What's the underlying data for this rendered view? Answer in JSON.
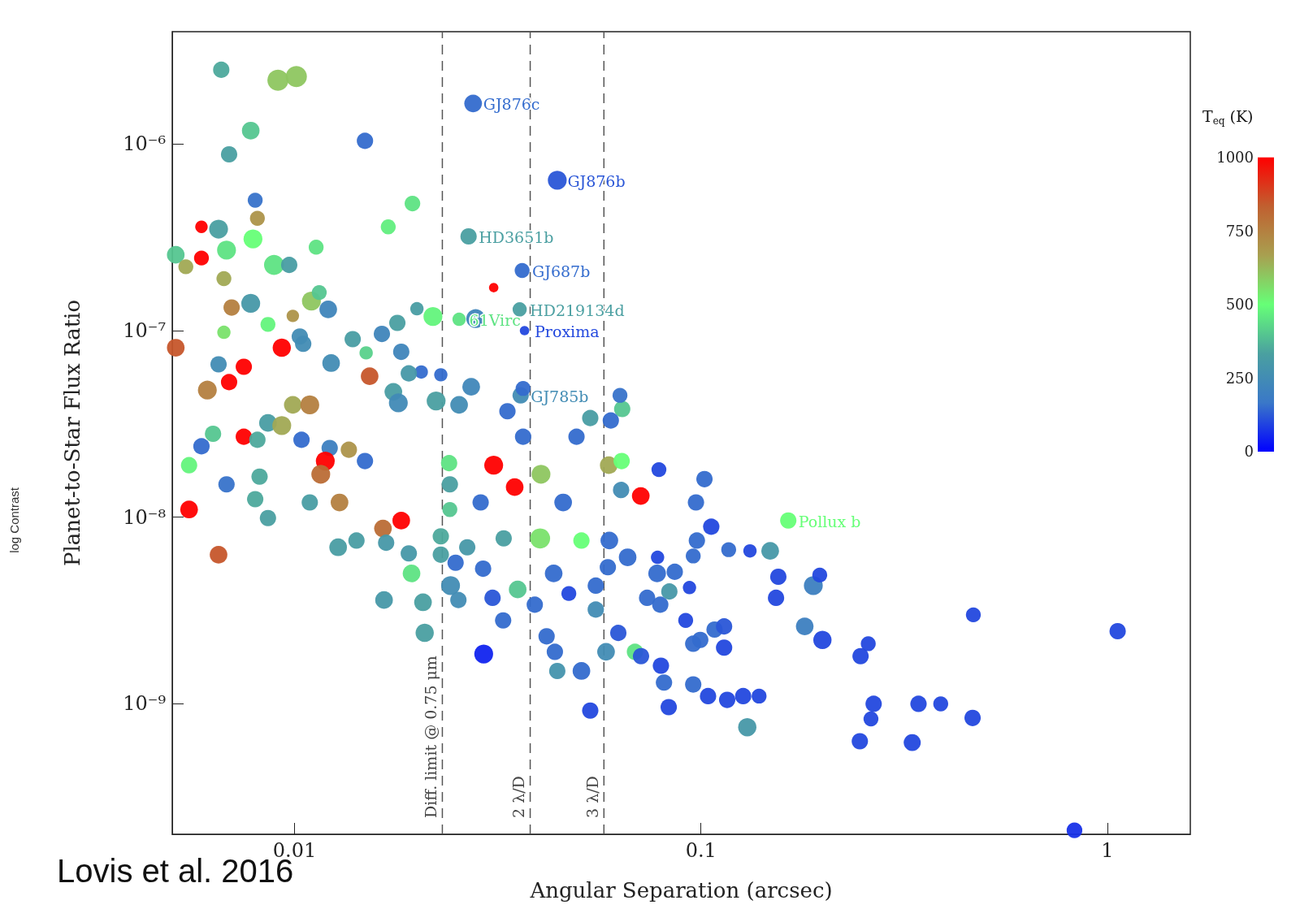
{
  "chart_data": {
    "type": "bubble",
    "xlabel": "Angular Separation (arcsec)",
    "ylabel": "Planet-to-Star Flux Ratio",
    "clabel": "T$_{eq}$ (K)",
    "log": "xy",
    "marker": "circle",
    "xlim": [
      0.005,
      1.6
    ],
    "ylim": [
      2e-10,
      4e-06
    ],
    "xticks": [
      0.01,
      0.1,
      1
    ],
    "yticks": [
      {
        "value": 1e-09,
        "label": "10⁻⁹"
      },
      {
        "value": 1e-08,
        "label": "10⁻⁸"
      },
      {
        "value": 1e-07,
        "label": "10⁻⁷"
      },
      {
        "value": 1e-06,
        "label": "10⁻⁶"
      }
    ],
    "clim": [
      0,
      1000
    ],
    "cticks": [
      0,
      250,
      500,
      750,
      1000
    ],
    "x": [
      0.0066,
      0.0091,
      0.0101,
      0.0078,
      0.0069,
      0.0149,
      0.0275,
      0.0443,
      0.0268,
      0.0363,
      0.0309,
      0.0358,
      0.0368,
      0.0254,
      0.0279,
      0.036,
      0.008,
      0.0081,
      0.0059,
      0.0065,
      0.0068,
      0.0079,
      0.0051,
      0.0054,
      0.0059,
      0.0089,
      0.0097,
      0.0113,
      0.017,
      0.0195,
      0.0067,
      0.007,
      0.0078,
      0.0067,
      0.0086,
      0.0099,
      0.011,
      0.0121,
      0.0115,
      0.0051,
      0.0093,
      0.0103,
      0.0105,
      0.0065,
      0.0075,
      0.0069,
      0.0061,
      0.0123,
      0.0153,
      0.015,
      0.0139,
      0.0164,
      0.0179,
      0.0183,
      0.02,
      0.0219,
      0.0205,
      0.0229,
      0.0191,
      0.0272,
      0.0175,
      0.018,
      0.0223,
      0.0254,
      0.0334,
      0.0365,
      0.0534,
      0.064,
      0.0632,
      0.06,
      0.0086,
      0.0099,
      0.0109,
      0.0093,
      0.0075,
      0.0081,
      0.0063,
      0.0055,
      0.0059,
      0.0068,
      0.0055,
      0.0065,
      0.0104,
      0.0122,
      0.0119,
      0.0116,
      0.0136,
      0.0149,
      0.0082,
      0.008,
      0.0086,
      0.0109,
      0.0129,
      0.0128,
      0.0142,
      0.0165,
      0.0183,
      0.0168,
      0.0191,
      0.0166,
      0.0194,
      0.0207,
      0.0209,
      0.024,
      0.0309,
      0.0348,
      0.0404,
      0.0287,
      0.0365,
      0.0494,
      0.0593,
      0.0638,
      0.0788,
      0.0711,
      0.0636,
      0.0458,
      0.0241,
      0.0241,
      0.0229,
      0.0229,
      0.0242,
      0.0253,
      0.0249,
      0.0266,
      0.0291,
      0.0307,
      0.0326,
      0.0292,
      0.0327,
      0.0354,
      0.039,
      0.0402,
      0.0417,
      0.0437,
      0.0443,
      0.0434,
      0.0473,
      0.0508,
      0.0508,
      0.0534,
      0.0551,
      0.0551,
      0.0595,
      0.059,
      0.0584,
      0.0626,
      0.066,
      0.0688,
      0.0712,
      0.0737,
      0.0797,
      0.0811,
      0.0833,
      0.0782,
      0.078,
      0.0794,
      0.0836,
      0.0862,
      0.0917,
      0.0937,
      0.0957,
      0.0996,
      0.0957,
      0.1041,
      0.0957,
      0.0977,
      0.0972,
      0.102,
      0.106,
      0.117,
      0.132,
      0.108,
      0.114,
      0.114,
      0.116,
      0.127,
      0.139,
      0.13,
      0.148,
      0.164,
      0.155,
      0.153,
      0.189,
      0.196,
      0.18,
      0.199,
      0.247,
      0.258,
      0.266,
      0.262,
      0.246,
      0.331,
      0.343,
      0.389,
      0.466,
      0.468,
      0.83,
      1.06
    ],
    "values": [
      2.5e-06,
      2.2e-06,
      2.3e-06,
      1.18e-06,
      8.8e-07,
      1.04e-06,
      1.65e-06,
      6.4e-07,
      3.2e-07,
      2.1e-07,
      1.7e-07,
      1.3e-07,
      1e-07,
      1.15e-07,
      1.16e-07,
      4.5e-08,
      5e-07,
      4e-07,
      3.6e-07,
      3.5e-07,
      2.7e-07,
      3.1e-07,
      2.55e-07,
      2.2e-07,
      2.45e-07,
      2.25e-07,
      2.25e-07,
      2.8e-07,
      3.6e-07,
      4.8e-07,
      1.9e-07,
      1.33e-07,
      1.4e-07,
      9.8e-08,
      1.08e-07,
      1.2e-07,
      1.44e-07,
      1.3e-07,
      1.6e-07,
      8.1e-08,
      8.1e-08,
      9.3e-08,
      8.5e-08,
      6.6e-08,
      6.4e-08,
      5.3e-08,
      4.8e-08,
      6.7e-08,
      5.7e-08,
      7.6e-08,
      9e-08,
      9.6e-08,
      1.1e-07,
      7.7e-08,
      1.31e-07,
      1.19e-07,
      6e-08,
      5.8e-08,
      5.9e-08,
      5e-08,
      4.7e-08,
      4.1e-08,
      4.2e-08,
      4e-08,
      3.7e-08,
      4.9e-08,
      3.4e-08,
      3.8e-08,
      4.5e-08,
      3.3e-08,
      3.2e-08,
      4e-08,
      4e-08,
      3.1e-08,
      2.7e-08,
      2.6e-08,
      2.8e-08,
      1.9e-08,
      2.4e-08,
      1.5e-08,
      1.1e-08,
      6.3e-09,
      2.6e-08,
      2.35e-08,
      2e-08,
      1.7e-08,
      2.3e-08,
      2e-08,
      1.65e-08,
      1.25e-08,
      9.9e-09,
      1.2e-08,
      1.2e-08,
      6.9e-09,
      7.5e-09,
      8.7e-09,
      9.6e-09,
      7.3e-09,
      6.4e-09,
      3.6e-09,
      5e-09,
      3.5e-09,
      2.4e-09,
      1.95e-08,
      1.9e-08,
      1.45e-08,
      1.7e-08,
      1.2e-08,
      2.7e-08,
      2.7e-08,
      1.9e-08,
      2e-08,
      1.8e-08,
      1.3e-08,
      1.4e-08,
      1.2e-08,
      1.5e-08,
      1.1e-08,
      7.9e-09,
      6.3e-09,
      4.3e-09,
      3.6e-09,
      5.7e-09,
      6.9e-09,
      5.3e-09,
      3.7e-09,
      2.8e-09,
      1.85e-09,
      7.7e-09,
      4.1e-09,
      3.4e-09,
      7.7e-09,
      2.3e-09,
      1.9e-09,
      1.5e-09,
      5e-09,
      3.9e-09,
      7.5e-09,
      1.5e-09,
      9.2e-10,
      4.3e-09,
      3.2e-09,
      7.5e-09,
      5.4e-09,
      1.9e-09,
      2.4e-09,
      6.1e-09,
      1.9e-09,
      1.8e-09,
      3.7e-09,
      1.6e-09,
      1.3e-09,
      9.6e-10,
      6.1e-09,
      5e-09,
      3.4e-09,
      4e-09,
      5.1e-09,
      2.8e-09,
      4.2e-09,
      2.1e-09,
      2.2e-09,
      1.27e-09,
      1.1e-09,
      6.2e-09,
      7.5e-09,
      1.2e-08,
      1.6e-08,
      8.9e-09,
      6.7e-09,
      6.6e-09,
      2.5e-09,
      2.6e-09,
      2e-09,
      1.05e-09,
      1.1e-09,
      1.1e-09,
      7.5e-10,
      6.6e-09,
      9.6e-09,
      4.8e-09,
      3.7e-09,
      4.3e-09,
      4.9e-09,
      2.6e-09,
      2.2e-09,
      1.8e-09,
      2.1e-09,
      1e-09,
      8.3e-10,
      6.3e-10,
      6.2e-10,
      1e-09,
      1e-09,
      8.4e-10,
      3e-09,
      2.1e-10,
      2.45e-09
    ],
    "cvalues": [
      350,
      600,
      600,
      400,
      330,
      150,
      150,
      120,
      330,
      150,
      1000,
      330,
      100,
      450,
      220,
      250,
      160,
      700,
      1000,
      330,
      450,
      500,
      400,
      650,
      1000,
      450,
      320,
      450,
      470,
      450,
      650,
      750,
      300,
      550,
      480,
      700,
      600,
      220,
      400,
      850,
      1000,
      250,
      250,
      250,
      1000,
      1000,
      750,
      250,
      850,
      420,
      320,
      220,
      330,
      220,
      320,
      480,
      150,
      150,
      300,
      230,
      320,
      240,
      330,
      250,
      150,
      150,
      320,
      400,
      160,
      150,
      320,
      650,
      750,
      650,
      1000,
      350,
      400,
      480,
      150,
      160,
      1000,
      850,
      150,
      200,
      1000,
      800,
      700,
      150,
      350,
      350,
      330,
      320,
      750,
      320,
      320,
      800,
      1000,
      300,
      300,
      300,
      450,
      330,
      330,
      450,
      1000,
      1000,
      600,
      150,
      150,
      150,
      650,
      500,
      100,
      1000,
      250,
      150,
      330,
      400,
      350,
      330,
      250,
      250,
      150,
      300,
      150,
      120,
      150,
      50,
      330,
      400,
      150,
      550,
      150,
      150,
      280,
      150,
      100,
      500,
      150,
      100,
      150,
      250,
      150,
      150,
      250,
      120,
      150,
      450,
      120,
      150,
      100,
      150,
      100,
      100,
      150,
      150,
      300,
      150,
      100,
      100,
      150,
      150,
      150,
      100,
      150,
      150,
      150,
      150,
      100,
      150,
      100,
      150,
      120,
      100,
      100,
      100,
      100,
      300,
      300,
      500,
      100,
      100,
      200,
      100,
      200,
      100,
      100,
      100,
      100,
      100,
      100,
      100,
      100,
      100,
      100,
      100,
      70,
      100
    ],
    "sizes": [
      0.6,
      1,
      1,
      0.7,
      0.6,
      0.6,
      0.7,
      0.8,
      0.6,
      0.5,
      0.2,
      0.45,
      0.2,
      0.4,
      0.8,
      0.6,
      0.5,
      0.5,
      0.35,
      0.8,
      0.8,
      0.8,
      0.7,
      0.5,
      0.5,
      0.9,
      0.6,
      0.5,
      0.5,
      0.55,
      0.5,
      0.6,
      0.8,
      0.4,
      0.5,
      0.35,
      0.8,
      0.7,
      0.5,
      0.7,
      0.75,
      0.6,
      0.6,
      0.6,
      0.6,
      0.6,
      0.8,
      0.7,
      0.7,
      0.4,
      0.6,
      0.6,
      0.6,
      0.6,
      0.4,
      0.8,
      0.4,
      0.4,
      0.6,
      0.7,
      0.7,
      0.8,
      0.8,
      0.7,
      0.6,
      0.5,
      0.6,
      0.6,
      0.5,
      0.6,
      0.7,
      0.7,
      0.8,
      0.8,
      0.6,
      0.6,
      0.6,
      0.6,
      0.6,
      0.6,
      0.7,
      0.7,
      0.6,
      0.6,
      0.8,
      0.8,
      0.6,
      0.6,
      0.6,
      0.6,
      0.6,
      0.6,
      0.7,
      0.7,
      0.6,
      0.7,
      0.7,
      0.6,
      0.6,
      0.7,
      0.7,
      0.7,
      0.75,
      0.6,
      0.8,
      0.7,
      0.8,
      0.6,
      0.6,
      0.6,
      0.7,
      0.6,
      0.5,
      0.7,
      0.6,
      0.7,
      0.6,
      0.5,
      0.6,
      0.6,
      0.8,
      0.6,
      0.6,
      0.6,
      0.6,
      0.6,
      0.6,
      0.8,
      0.6,
      0.7,
      0.6,
      0.9,
      0.6,
      0.6,
      0.6,
      0.7,
      0.5,
      0.6,
      0.7,
      0.6,
      0.6,
      0.6,
      0.7,
      0.6,
      0.7,
      0.6,
      0.7,
      0.6,
      0.6,
      0.6,
      0.6,
      0.6,
      0.6,
      0.4,
      0.7,
      0.6,
      0.6,
      0.6,
      0.5,
      0.4,
      0.6,
      0.6,
      0.6,
      0.6,
      0.5,
      0.6,
      0.6,
      0.6,
      0.6,
      0.5,
      0.4,
      0.6,
      0.6,
      0.6,
      0.6,
      0.6,
      0.5,
      0.75,
      0.7,
      0.6,
      0.6,
      0.6,
      0.8,
      0.5,
      0.7,
      0.75,
      0.6,
      0.5,
      0.6,
      0.5,
      0.6,
      0.65,
      0.6,
      0.5,
      0.6,
      0.5,
      0.55,
      0.6
    ],
    "ref_lines": [
      {
        "axis": "x",
        "value": 0.0231,
        "label": "Diff. limit @ 0.75 μm",
        "color": "#555555",
        "line_style": "dashed"
      },
      {
        "axis": "x",
        "value": 0.038,
        "label": "2 λ/D",
        "color": "#555555",
        "line_style": "dashed"
      },
      {
        "axis": "x",
        "value": 0.0577,
        "label": "3 λ/D",
        "color": "#555555",
        "line_style": "dashed"
      }
    ],
    "annotations": [
      {
        "text": "GJ876c",
        "x": 0.0275,
        "y": 1.65e-06
      },
      {
        "text": "GJ876b",
        "x": 0.0443,
        "y": 6.4e-07
      },
      {
        "text": "HD3651b",
        "x": 0.0268,
        "y": 3.2e-07
      },
      {
        "text": "GJ687b",
        "x": 0.0363,
        "y": 2.1e-07
      },
      {
        "text": "HD219134d",
        "x": 0.0358,
        "y": 1.3e-07
      },
      {
        "text": "61Virc",
        "x": 0.0254,
        "y": 1.15e-07
      },
      {
        "text": "Proxima",
        "x": 0.0368,
        "y": 1e-07
      },
      {
        "text": "GJ785b",
        "x": 0.036,
        "y": 4.5e-08
      },
      {
        "text": "Pollux b",
        "x": 0.164,
        "y": 9.6e-09
      },
      "log Contrast",
      "Lovis et al. 2016"
    ]
  }
}
